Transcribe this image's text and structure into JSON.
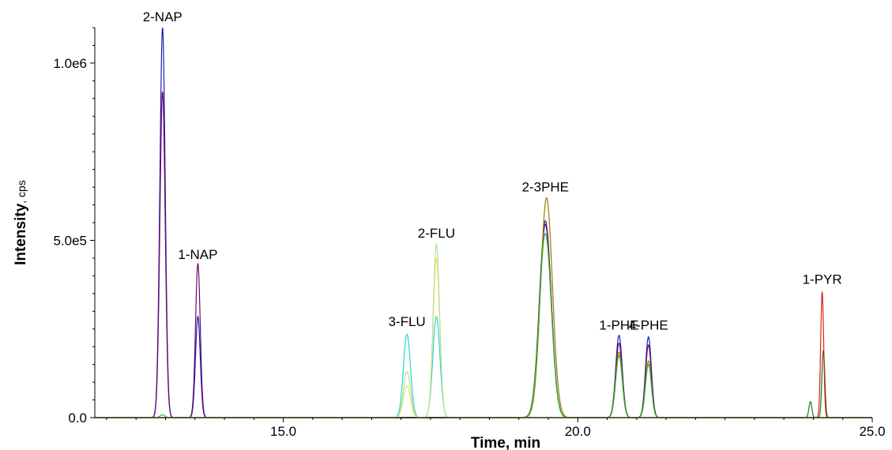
{
  "chart_data": {
    "type": "line",
    "xlabel": "Time, min",
    "ylabel_main": "Intensity",
    "ylabel_unit": ", cps",
    "xlim": [
      11.8,
      25.0
    ],
    "ylim": [
      0,
      1100000
    ],
    "xticks": [
      {
        "value": 15.0,
        "label": "15.0"
      },
      {
        "value": 20.0,
        "label": "20.0"
      },
      {
        "value": 25.0,
        "label": "25.0"
      }
    ],
    "yticks": [
      {
        "value": 0,
        "label": "0.0"
      },
      {
        "value": 500000,
        "label": "5.0e5"
      },
      {
        "value": 1000000,
        "label": "1.0e6"
      }
    ],
    "annotations": [
      {
        "text": "2-NAP",
        "x": 12.95,
        "y": 1100000
      },
      {
        "text": "1-NAP",
        "x": 13.55,
        "y": 430000
      },
      {
        "text": "3-FLU",
        "x": 17.1,
        "y": 240000
      },
      {
        "text": "2-FLU",
        "x": 17.6,
        "y": 490000
      },
      {
        "text": "2-3PHE",
        "x": 19.45,
        "y": 620000
      },
      {
        "text": "1-PHE",
        "x": 20.7,
        "y": 230000
      },
      {
        "text": "4-PHE",
        "x": 21.2,
        "y": 230000
      },
      {
        "text": "1-PYR",
        "x": 24.15,
        "y": 360000
      }
    ],
    "series": [
      {
        "color": "#1e1eb4",
        "peaks": [
          {
            "x": 12.95,
            "height": 1100000,
            "width": 0.045
          },
          {
            "x": 13.55,
            "height": 285000,
            "width": 0.04
          },
          {
            "x": 19.45,
            "height": 545000,
            "width": 0.1
          },
          {
            "x": 20.7,
            "height": 232000,
            "width": 0.055
          },
          {
            "x": 21.2,
            "height": 228000,
            "width": 0.05
          }
        ]
      },
      {
        "color": "#6a0a6a",
        "peaks": [
          {
            "x": 12.95,
            "height": 920000,
            "width": 0.045
          },
          {
            "x": 13.55,
            "height": 435000,
            "width": 0.04
          },
          {
            "x": 19.45,
            "height": 555000,
            "width": 0.1
          },
          {
            "x": 20.7,
            "height": 210000,
            "width": 0.055
          },
          {
            "x": 21.2,
            "height": 205000,
            "width": 0.05
          }
        ]
      },
      {
        "color": "#9a7a00",
        "peaks": [
          {
            "x": 19.47,
            "height": 620000,
            "width": 0.1
          },
          {
            "x": 20.7,
            "height": 185000,
            "width": 0.055
          },
          {
            "x": 21.2,
            "height": 160000,
            "width": 0.05
          }
        ]
      },
      {
        "color": "#2eb82e",
        "peaks": [
          {
            "x": 12.95,
            "height": 8000,
            "width": 0.04
          },
          {
            "x": 19.45,
            "height": 520000,
            "width": 0.1
          },
          {
            "x": 20.7,
            "height": 175000,
            "width": 0.055
          },
          {
            "x": 21.2,
            "height": 150000,
            "width": 0.05
          }
        ]
      },
      {
        "color": "#1a7a1a",
        "peaks": [
          {
            "x": 23.95,
            "height": 45000,
            "width": 0.025
          },
          {
            "x": 24.17,
            "height": 190000,
            "width": 0.025
          }
        ]
      },
      {
        "color": "#e01e1e",
        "peaks": [
          {
            "x": 24.15,
            "height": 355000,
            "width": 0.025
          }
        ]
      },
      {
        "color": "#2ad4d4",
        "peaks": [
          {
            "x": 17.1,
            "height": 235000,
            "width": 0.06
          },
          {
            "x": 17.6,
            "height": 285000,
            "width": 0.06
          }
        ]
      },
      {
        "color": "#e8e84a",
        "peaks": [
          {
            "x": 17.1,
            "height": 90000,
            "width": 0.06
          },
          {
            "x": 17.6,
            "height": 450000,
            "width": 0.055
          }
        ]
      },
      {
        "color": "#b8e0a0",
        "peaks": [
          {
            "x": 17.1,
            "height": 130000,
            "width": 0.06
          },
          {
            "x": 17.6,
            "height": 490000,
            "width": 0.055
          }
        ]
      }
    ]
  }
}
